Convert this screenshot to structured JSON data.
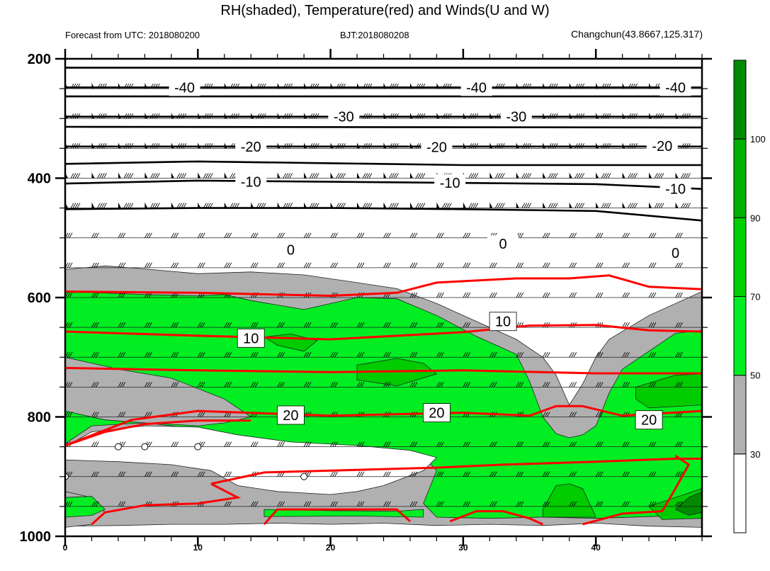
{
  "title": "RH(shaded), Temperature(red) and Winds(U and W)",
  "subtitle_left": "Forecast from UTC: 2018080200",
  "subtitle_center": "BJT:2018080208",
  "subtitle_right": "Changchun(43.8667,125.317)",
  "chart_data": {
    "type": "heatmap",
    "x_ticks": [
      "0",
      "10",
      "20",
      "30",
      "40"
    ],
    "x_range": [
      0,
      48
    ],
    "y_ticks": [
      "200",
      "400",
      "600",
      "800",
      "1000"
    ],
    "y_range": [
      200,
      1000
    ],
    "y_reversed": true,
    "levels": [
      200,
      250,
      300,
      350,
      400,
      450,
      500,
      550,
      600,
      650,
      700,
      750,
      800,
      850,
      900,
      950,
      1000
    ],
    "colorbar": {
      "labels": [
        "30",
        "50",
        "70",
        "90",
        "100"
      ],
      "colors": [
        "#ffffff",
        "#b0b0b0",
        "#00ee22",
        "#00d000",
        "#00b000",
        "#008a00"
      ]
    },
    "rh_colors": {
      "gray": "#b0b0b0",
      "light_green": "#00ee22",
      "mid_green": "#00cc00",
      "dark_green": "#008a00"
    },
    "temperature_color": "#ff0000",
    "isotherm_labels_black": [
      {
        "text": "-40",
        "x": 9,
        "y": 248
      },
      {
        "text": "-40",
        "x": 31,
        "y": 248
      },
      {
        "text": "-40",
        "x": 46,
        "y": 248
      },
      {
        "text": "-30",
        "x": 21,
        "y": 297
      },
      {
        "text": "-30",
        "x": 34,
        "y": 297
      },
      {
        "text": "-20",
        "x": 14,
        "y": 347
      },
      {
        "text": "-20",
        "x": 28,
        "y": 348
      },
      {
        "text": "-20",
        "x": 45,
        "y": 346
      },
      {
        "text": "-10",
        "x": 14,
        "y": 406
      },
      {
        "text": "-10",
        "x": 29,
        "y": 408
      },
      {
        "text": "-10",
        "x": 46,
        "y": 418
      },
      {
        "text": "0",
        "x": 17,
        "y": 520
      },
      {
        "text": "0",
        "x": 33,
        "y": 510
      },
      {
        "text": "0",
        "x": 46,
        "y": 525
      }
    ],
    "isotherm_labels_red": [
      {
        "text": "10",
        "x": 14,
        "y": 668
      },
      {
        "text": "10",
        "x": 33,
        "y": 640
      },
      {
        "text": "20",
        "x": 17,
        "y": 797
      },
      {
        "text": "20",
        "x": 28,
        "y": 793
      },
      {
        "text": "20",
        "x": 44,
        "y": 805
      }
    ],
    "black_isotherms": [
      {
        "x": [
          0,
          48
        ],
        "y": [
          215,
          215
        ]
      },
      {
        "x": [
          0,
          48
        ],
        "y": [
          248,
          248
        ]
      },
      {
        "x": [
          0,
          48
        ],
        "y": [
          263,
          263
        ]
      },
      {
        "x": [
          0,
          48
        ],
        "y": [
          297,
          297
        ]
      },
      {
        "x": [
          0,
          48
        ],
        "y": [
          314,
          315
        ]
      },
      {
        "x": [
          0,
          48
        ],
        "y": [
          347,
          347
        ]
      },
      {
        "x": [
          0,
          10,
          20,
          30,
          40,
          48
        ],
        "y": [
          376,
          372,
          375,
          378,
          378,
          378
        ]
      },
      {
        "x": [
          0,
          10,
          20,
          30,
          40,
          48
        ],
        "y": [
          409,
          404,
          406,
          408,
          410,
          418
        ]
      },
      {
        "x": [
          0,
          10,
          20,
          30,
          40,
          48
        ],
        "y": [
          452,
          450,
          450,
          452,
          455,
          471
        ]
      }
    ],
    "red_isotherms": [
      {
        "x": [
          0,
          10,
          20,
          25,
          28,
          34,
          38,
          41,
          44,
          48
        ],
        "y": [
          590,
          592,
          597,
          592,
          575,
          568,
          568,
          563,
          582,
          586
        ]
      },
      {
        "x": [
          0,
          10,
          20,
          30,
          35,
          40,
          44,
          48
        ],
        "y": [
          657,
          664,
          670,
          658,
          647,
          646,
          655,
          657
        ]
      },
      {
        "x": [
          0,
          10,
          20,
          30,
          40,
          48
        ],
        "y": [
          718,
          722,
          725,
          722,
          727,
          727
        ]
      },
      {
        "x": [
          0,
          5,
          10,
          20,
          30,
          35,
          37,
          39,
          42,
          48
        ],
        "y": [
          848,
          805,
          790,
          798,
          793,
          798,
          782,
          782,
          798,
          790
        ]
      },
      {
        "x": [
          11,
          15,
          28,
          33,
          40,
          46,
          48
        ],
        "y": [
          912,
          893,
          885,
          880,
          875,
          870,
          870
        ]
      }
    ],
    "wind_rows": {
      "pressure_levels": [
        250,
        300,
        350,
        400,
        450,
        500,
        550,
        600,
        650,
        700,
        750,
        800,
        850,
        900,
        950
      ],
      "times": [
        0,
        2,
        4,
        6,
        8,
        10,
        12,
        14,
        16,
        18,
        20,
        22,
        24,
        26,
        28,
        30,
        32,
        34,
        36,
        38,
        40,
        42,
        44,
        46,
        48
      ]
    },
    "calm_points": [
      {
        "x": 4,
        "y": 850
      },
      {
        "x": 6,
        "y": 850
      },
      {
        "x": 10,
        "y": 850
      },
      {
        "x": 0,
        "y": 900
      },
      {
        "x": 18,
        "y": 900
      }
    ]
  }
}
